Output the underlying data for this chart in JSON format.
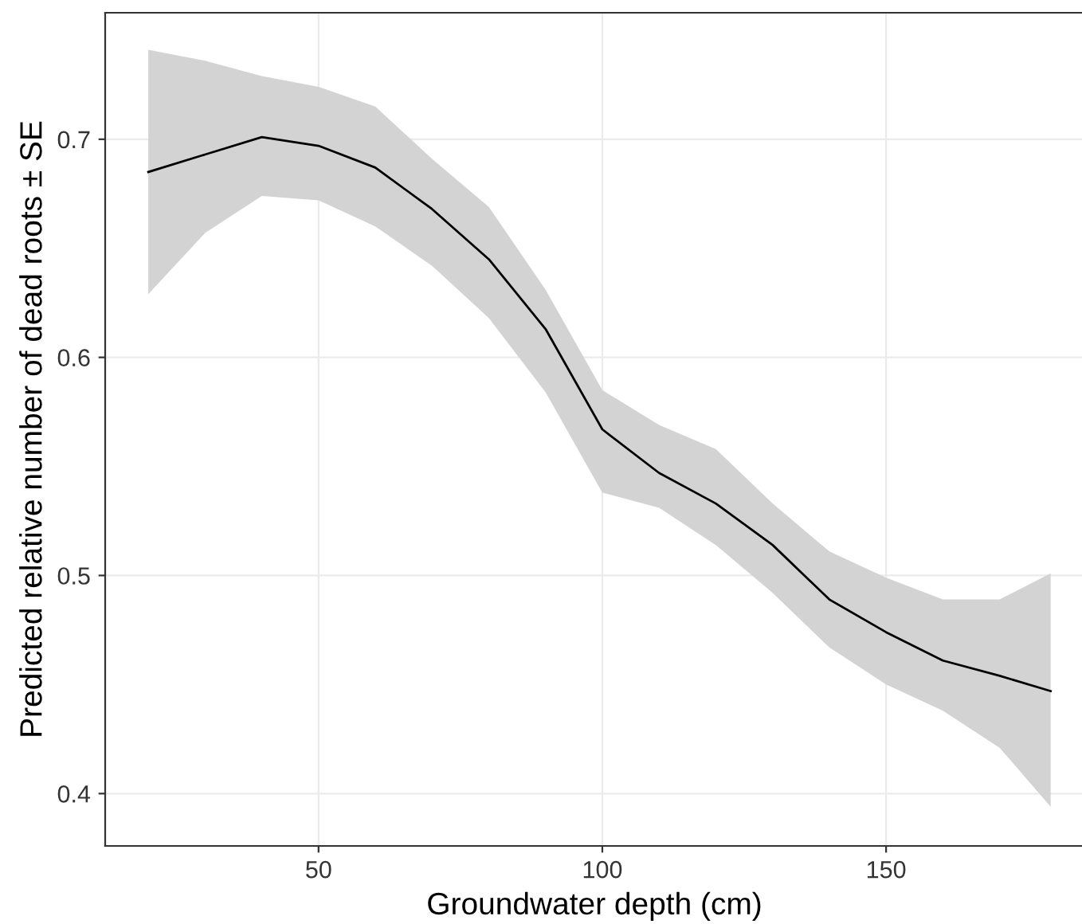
{
  "chart_data": {
    "type": "line",
    "xlabel": "Groundwater depth (cm)",
    "ylabel": "Predicted relative number of dead roots ± SE",
    "x": [
      20,
      30,
      40,
      50,
      60,
      70,
      80,
      90,
      100,
      110,
      120,
      130,
      140,
      150,
      160,
      170,
      179
    ],
    "series": [
      {
        "color": "#000000",
        "values": [
          0.685,
          0.693,
          0.701,
          0.697,
          0.687,
          0.668,
          0.645,
          0.613,
          0.567,
          0.547,
          0.533,
          0.514,
          0.489,
          0.474,
          0.461,
          0.454,
          0.447
        ],
        "lower": [
          0.629,
          0.657,
          0.674,
          0.672,
          0.66,
          0.642,
          0.618,
          0.584,
          0.538,
          0.531,
          0.514,
          0.492,
          0.467,
          0.45,
          0.438,
          0.421,
          0.394
        ],
        "upper": [
          0.741,
          0.736,
          0.729,
          0.724,
          0.715,
          0.691,
          0.669,
          0.631,
          0.585,
          0.569,
          0.558,
          0.533,
          0.511,
          0.499,
          0.489,
          0.489,
          0.501
        ]
      }
    ],
    "xlim": [
      12.4,
      184.8
    ],
    "ylim": [
      0.376,
      0.758
    ],
    "xticks": [
      50,
      100,
      150
    ],
    "yticks": [
      0.4,
      0.5,
      0.6,
      0.7
    ],
    "grid": true,
    "marker": "none",
    "line_style": "solid"
  }
}
